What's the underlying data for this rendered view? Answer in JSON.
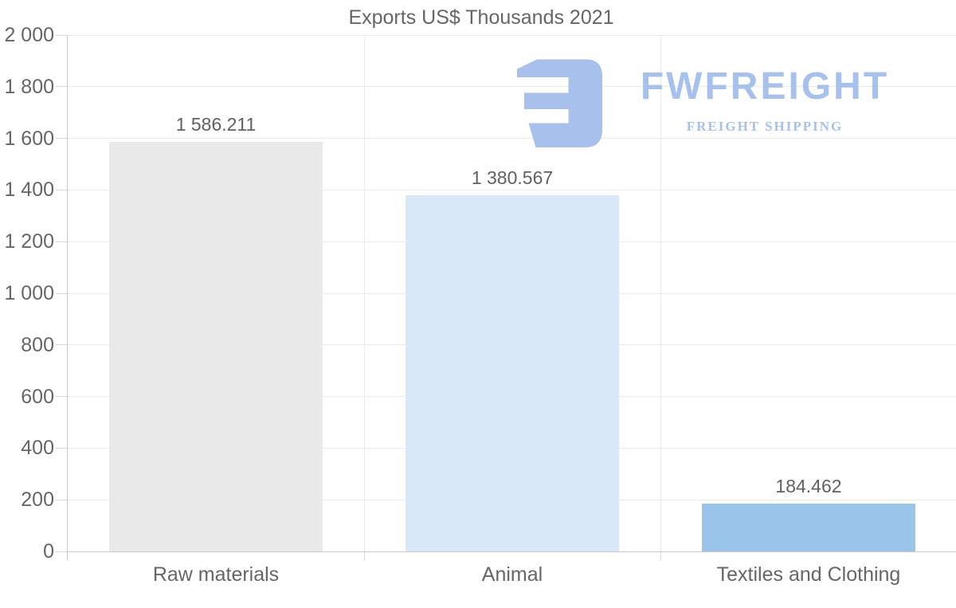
{
  "chart_data": {
    "type": "bar",
    "title": "Exports US$ Thousands 2021",
    "categories": [
      "Raw materials",
      "Animal",
      "Textiles and Clothing"
    ],
    "values": [
      1586.211,
      1380.567,
      184.462
    ],
    "value_labels": [
      "1 586.211",
      "1 380.567",
      "184.462"
    ],
    "bar_colors": [
      "#e9e9e9",
      "#d8e8f8",
      "#9ac4e9"
    ],
    "xlabel": "",
    "ylabel": "",
    "ylim": [
      0,
      2000
    ],
    "ytick_step": 200,
    "ytick_labels": [
      "0",
      "200",
      "400",
      "600",
      "800",
      "1 000",
      "1 200",
      "1 400",
      "1 600",
      "1 800",
      "2 000"
    ],
    "grid": true,
    "legend": "none"
  },
  "watermark": {
    "brand": "FWFREIGHT",
    "tagline": "FREIGHT SHIPPING",
    "color": "#a6c1ed"
  },
  "colors": {
    "background": "#ffffff",
    "gridline": "#ebebeb",
    "axis": "#c9c9c9",
    "tick": "#d9d9d9",
    "title_text": "#666666",
    "axis_text": "#666666",
    "value_text": "#616161"
  }
}
